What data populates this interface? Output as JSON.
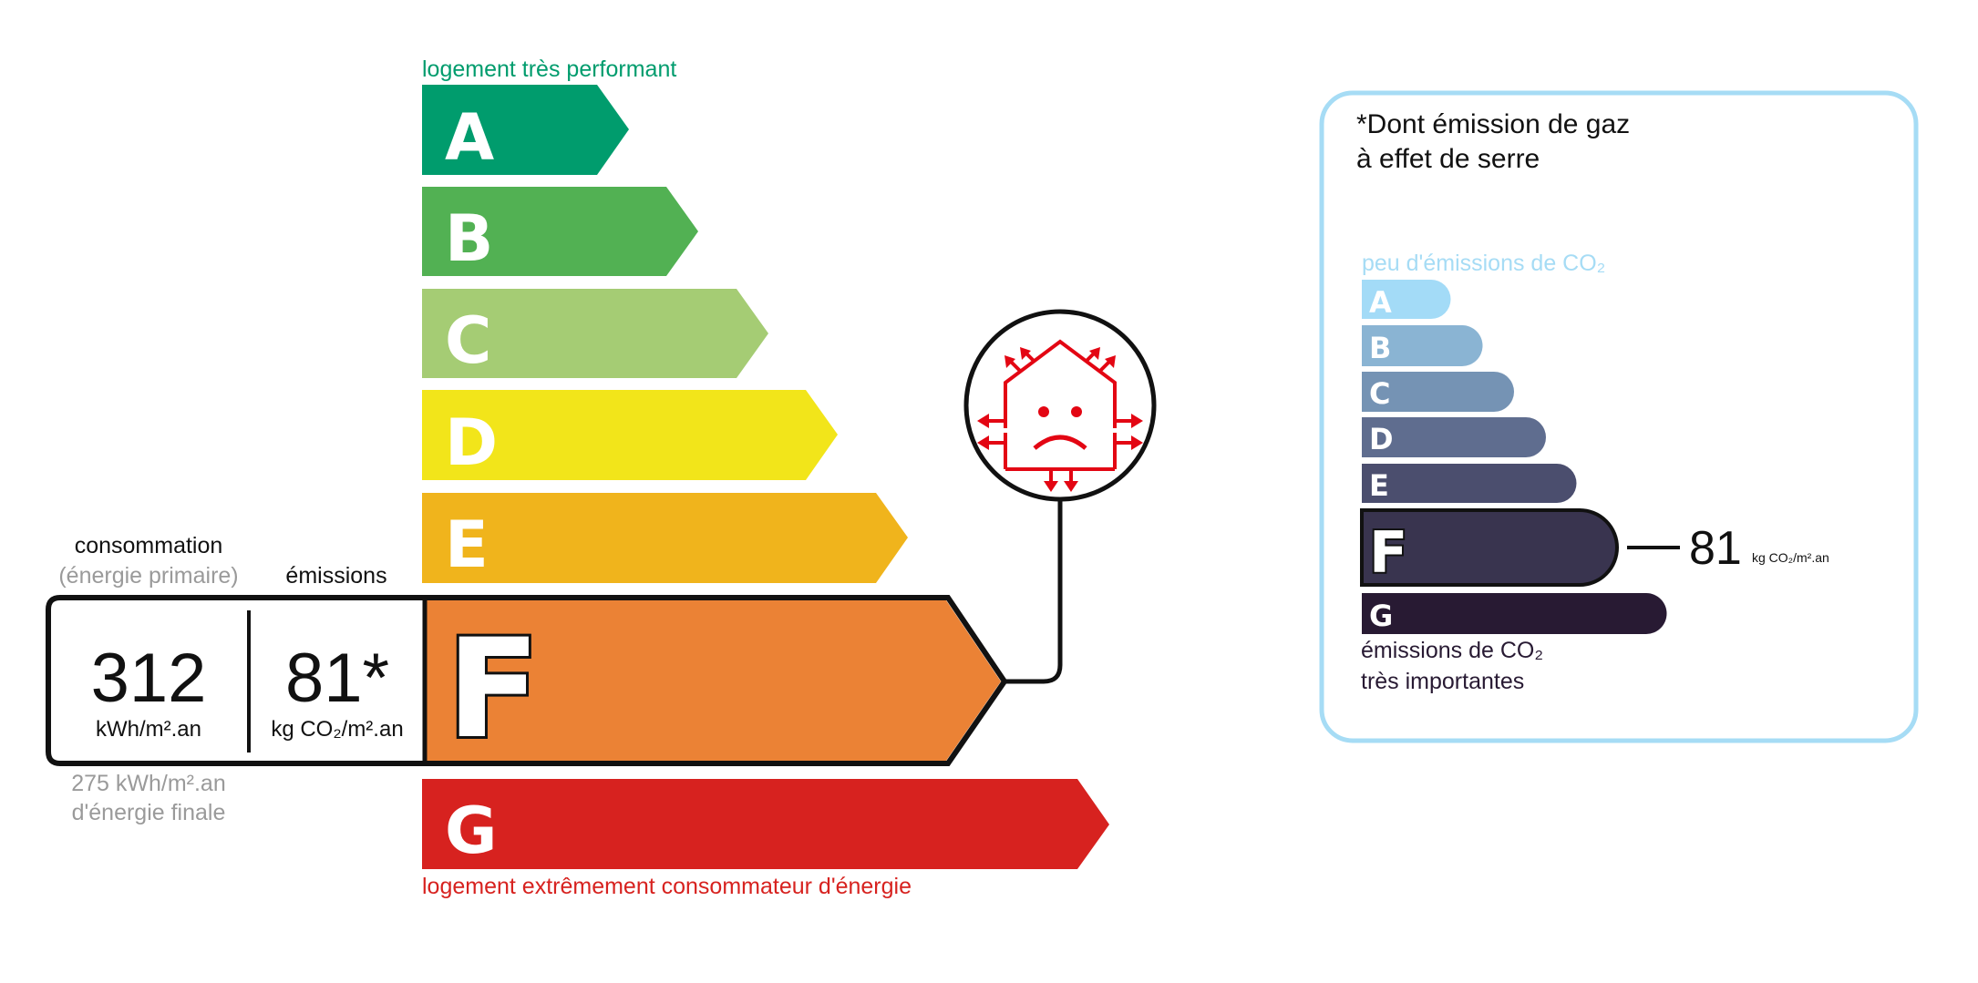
{
  "energy": {
    "top_label": "logement très performant",
    "bottom_label": "logement extrêmement consommateur d'énergie",
    "top_label_color": "#009c6d",
    "bottom_label_color": "#d7221f",
    "classes": [
      {
        "letter": "A",
        "color": "#009c6d"
      },
      {
        "letter": "B",
        "color": "#52b153"
      },
      {
        "letter": "C",
        "color": "#a5cc74"
      },
      {
        "letter": "D",
        "color": "#f2e51a"
      },
      {
        "letter": "E",
        "color": "#f0b41c"
      },
      {
        "letter": "F",
        "color": "#eb8235"
      },
      {
        "letter": "G",
        "color": "#d7221f"
      }
    ],
    "current_class": "F",
    "consumption_label": "consommation",
    "consumption_sublabel": "(énergie primaire)",
    "emissions_label": "émissions",
    "consumption_value": "312",
    "consumption_unit": "kWh/m².an",
    "emissions_value": "81*",
    "emissions_unit": "kg CO₂/m².an",
    "final_energy_value": "275 kWh/m².an",
    "final_energy_label": "d'énergie finale",
    "badge_icon": "sad-house-heat-loss-icon",
    "badge_color": "#e30613"
  },
  "ges": {
    "title_line1": "*Dont émission de gaz",
    "title_line2": "à effet de serre",
    "top_label": "peu d'émissions de CO₂",
    "bottom_label_line1": "émissions de CO₂",
    "bottom_label_line2": "très importantes",
    "border_color": "#a6dcf5",
    "classes": [
      {
        "letter": "A",
        "color": "#a3dbf7"
      },
      {
        "letter": "B",
        "color": "#8ab4d3"
      },
      {
        "letter": "C",
        "color": "#7593b4"
      },
      {
        "letter": "D",
        "color": "#5f6d8f"
      },
      {
        "letter": "E",
        "color": "#4b4e6e"
      },
      {
        "letter": "F",
        "color": "#39344f"
      },
      {
        "letter": "G",
        "color": "#281a33"
      }
    ],
    "current_class": "F",
    "value": "81",
    "unit": "kg CO₂/m².an"
  }
}
